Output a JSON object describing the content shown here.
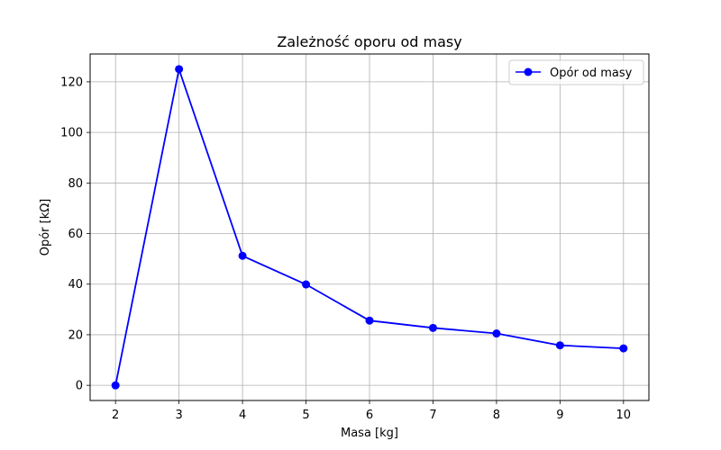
{
  "chart_data": {
    "type": "line",
    "title": "Zależność oporu od masy",
    "xlabel": "Masa [kg]",
    "ylabel": "Opór [kΩ]",
    "xlim": [
      1.6,
      10.4
    ],
    "ylim": [
      -6,
      131
    ],
    "xticks": [
      2,
      3,
      4,
      5,
      6,
      7,
      8,
      9,
      10
    ],
    "yticks": [
      0,
      20,
      40,
      60,
      80,
      100,
      120
    ],
    "grid": true,
    "legend_position": "top-right",
    "series": [
      {
        "name": "Opór od masy",
        "color": "#0000ff",
        "marker": "circle",
        "x": [
          2,
          3,
          4,
          5,
          6,
          7,
          8,
          9,
          10
        ],
        "y": [
          0,
          125,
          51.2,
          39.9,
          25.6,
          22.7,
          20.5,
          15.8,
          14.6
        ]
      }
    ]
  }
}
